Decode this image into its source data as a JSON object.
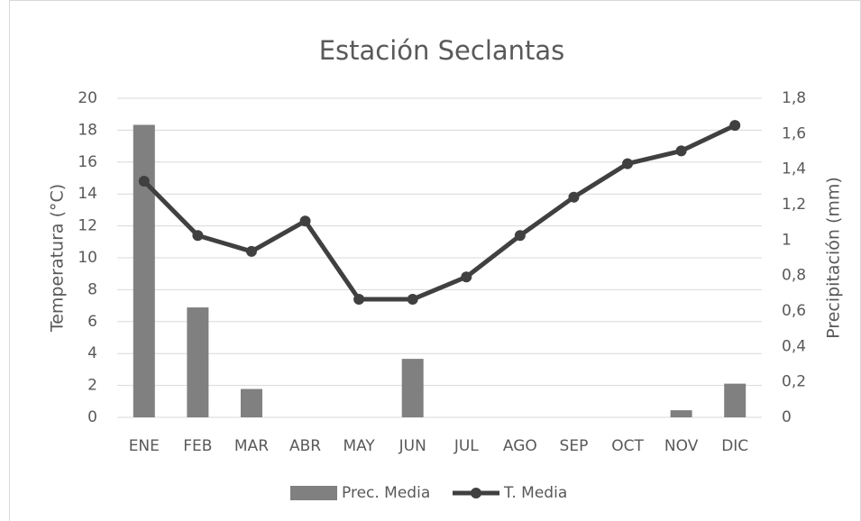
{
  "chart_data": {
    "type": "bar_line",
    "title": "Estación Seclantas",
    "categories": [
      "ENE",
      "FEB",
      "MAR",
      "ABR",
      "MAY",
      "JUN",
      "JUL",
      "AGO",
      "SEP",
      "OCT",
      "NOV",
      "DIC"
    ],
    "series": [
      {
        "name": "Prec. Media",
        "type": "bar",
        "axis": "y2",
        "color": "#808080",
        "values": [
          1.65,
          0.62,
          0.16,
          0,
          0,
          0.33,
          0,
          0,
          0,
          0,
          0.04,
          0.19
        ]
      },
      {
        "name": "T. Media",
        "type": "line",
        "axis": "y",
        "color": "#404040",
        "values": [
          14.8,
          11.4,
          10.4,
          12.3,
          7.4,
          7.4,
          8.8,
          11.4,
          13.8,
          15.9,
          16.7,
          18.3
        ]
      }
    ],
    "ylabel": "Temperatura (°C)",
    "y2label": "Precipitación (mm)",
    "ylim": [
      0,
      20
    ],
    "yticks": [
      0,
      2,
      4,
      6,
      8,
      10,
      12,
      14,
      16,
      18,
      20
    ],
    "y2lim": [
      0,
      1.8
    ],
    "y2ticks": [
      0,
      {
        "value": 0.2,
        "label": "0,2"
      },
      {
        "value": 0.4,
        "label": "0,4"
      },
      {
        "value": 0.6,
        "label": "0,6"
      },
      {
        "value": 0.8,
        "label": "0,8"
      },
      1,
      {
        "value": 1.2,
        "label": "1,2"
      },
      {
        "value": 1.4,
        "label": "1,4"
      },
      {
        "value": 1.6,
        "label": "1,6"
      },
      {
        "value": 1.8,
        "label": "1,8"
      }
    ],
    "grid": true,
    "legend": "bottom"
  }
}
